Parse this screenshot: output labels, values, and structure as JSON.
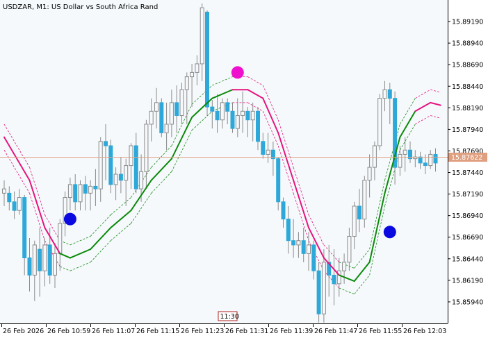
{
  "chart_data": {
    "type": "candlestick",
    "symbol": "USDZAR",
    "timeframe": "M1",
    "description": "US Dollar vs South Africa Rand",
    "title": "USDZAR, M1:  US Dollar vs South Africa Rand",
    "ylim": [
      15.8569,
      15.8944
    ],
    "y_ticks": [
      "15.89190",
      "15.88940",
      "15.88690",
      "15.88440",
      "15.88190",
      "15.87940",
      "15.87690",
      "15.87440",
      "15.87190",
      "15.86940",
      "15.86690",
      "15.86440",
      "15.86190",
      "15.85940"
    ],
    "x_ticks": [
      "26 Feb 2026",
      "26 Feb 10:59",
      "26 Feb 11:07",
      "26 Feb 11:15",
      "26 Feb 11:23",
      "26 Feb 11:31",
      "26 Feb 11:39",
      "26 Feb 11:47",
      "26 Feb 11:55",
      "26 Feb 12:03"
    ],
    "current_price": 15.87622,
    "current_price_label": "15.87622",
    "crosshair_time_label": "11:30",
    "colors": {
      "background": "#f5f9fb",
      "up_candle_fill": "#f5f9fb",
      "up_candle_border": "#8a8a8a",
      "down_candle_fill": "#2ea8d8",
      "down_candle_border": "#2ea8d8",
      "wick": "#8a8a8a",
      "bull_line": "#0b8a0b",
      "bear_line": "#e6157f",
      "band_bull": "#1a8a1a",
      "band_bear": "#e6157f",
      "price_line": "#e0a080",
      "price_label_bg": "#e0a080",
      "signal_buy": "#0a0ae0",
      "signal_sell": "#ee10cc"
    },
    "candles": [
      {
        "o": 15.872,
        "h": 15.8735,
        "l": 15.8705,
        "c": 15.8725
      },
      {
        "o": 15.872,
        "h": 15.8728,
        "l": 15.87,
        "c": 15.871
      },
      {
        "o": 15.871,
        "h": 15.8722,
        "l": 15.869,
        "c": 15.87
      },
      {
        "o": 15.87,
        "h": 15.8725,
        "l": 15.8695,
        "c": 15.8715
      },
      {
        "o": 15.8715,
        "h": 15.8718,
        "l": 15.8625,
        "c": 15.8645
      },
      {
        "o": 15.8645,
        "h": 15.8668,
        "l": 15.8606,
        "c": 15.8625
      },
      {
        "o": 15.8625,
        "h": 15.8665,
        "l": 15.8595,
        "c": 15.866
      },
      {
        "o": 15.8655,
        "h": 15.868,
        "l": 15.86,
        "c": 15.863
      },
      {
        "o": 15.863,
        "h": 15.8668,
        "l": 15.8612,
        "c": 15.866
      },
      {
        "o": 15.866,
        "h": 15.868,
        "l": 15.8615,
        "c": 15.8625
      },
      {
        "o": 15.8625,
        "h": 15.8662,
        "l": 15.861,
        "c": 15.865
      },
      {
        "o": 15.865,
        "h": 15.869,
        "l": 15.863,
        "c": 15.8685
      },
      {
        "o": 15.8685,
        "h": 15.8722,
        "l": 15.867,
        "c": 15.8715
      },
      {
        "o": 15.8715,
        "h": 15.8738,
        "l": 15.87,
        "c": 15.873
      },
      {
        "o": 15.873,
        "h": 15.8742,
        "l": 15.87,
        "c": 15.871
      },
      {
        "o": 15.871,
        "h": 15.8735,
        "l": 15.87,
        "c": 15.873
      },
      {
        "o": 15.873,
        "h": 15.874,
        "l": 15.87,
        "c": 15.872
      },
      {
        "o": 15.872,
        "h": 15.8735,
        "l": 15.87,
        "c": 15.8728
      },
      {
        "o": 15.8728,
        "h": 15.8748,
        "l": 15.8705,
        "c": 15.8725
      },
      {
        "o": 15.8725,
        "h": 15.8785,
        "l": 15.871,
        "c": 15.878
      },
      {
        "o": 15.878,
        "h": 15.88,
        "l": 15.8735,
        "c": 15.8775
      },
      {
        "o": 15.8775,
        "h": 15.8782,
        "l": 15.872,
        "c": 15.873
      },
      {
        "o": 15.873,
        "h": 15.875,
        "l": 15.8712,
        "c": 15.8742
      },
      {
        "o": 15.8742,
        "h": 15.8762,
        "l": 15.872,
        "c": 15.8735
      },
      {
        "o": 15.8735,
        "h": 15.876,
        "l": 15.8705,
        "c": 15.8752
      },
      {
        "o": 15.8752,
        "h": 15.8778,
        "l": 15.8725,
        "c": 15.8775
      },
      {
        "o": 15.8775,
        "h": 15.879,
        "l": 15.872,
        "c": 15.8725
      },
      {
        "o": 15.8725,
        "h": 15.8765,
        "l": 15.871,
        "c": 15.8745
      },
      {
        "o": 15.8745,
        "h": 15.8805,
        "l": 15.8725,
        "c": 15.88
      },
      {
        "o": 15.88,
        "h": 15.883,
        "l": 15.878,
        "c": 15.8815
      },
      {
        "o": 15.8815,
        "h": 15.8842,
        "l": 15.8795,
        "c": 15.8825
      },
      {
        "o": 15.8825,
        "h": 15.883,
        "l": 15.8785,
        "c": 15.879
      },
      {
        "o": 15.879,
        "h": 15.8825,
        "l": 15.877,
        "c": 15.88
      },
      {
        "o": 15.88,
        "h": 15.884,
        "l": 15.8785,
        "c": 15.8825
      },
      {
        "o": 15.8825,
        "h": 15.8845,
        "l": 15.879,
        "c": 15.881
      },
      {
        "o": 15.881,
        "h": 15.8848,
        "l": 15.88,
        "c": 15.884
      },
      {
        "o": 15.884,
        "h": 15.886,
        "l": 15.88,
        "c": 15.8855
      },
      {
        "o": 15.8855,
        "h": 15.887,
        "l": 15.882,
        "c": 15.886
      },
      {
        "o": 15.886,
        "h": 15.888,
        "l": 15.8845,
        "c": 15.887
      },
      {
        "o": 15.887,
        "h": 15.894,
        "l": 15.885,
        "c": 15.8935
      },
      {
        "o": 15.893,
        "h": 15.8932,
        "l": 15.881,
        "c": 15.882
      },
      {
        "o": 15.882,
        "h": 15.8828,
        "l": 15.8795,
        "c": 15.8815
      },
      {
        "o": 15.8815,
        "h": 15.8835,
        "l": 15.879,
        "c": 15.8805
      },
      {
        "o": 15.8805,
        "h": 15.883,
        "l": 15.8795,
        "c": 15.8825
      },
      {
        "o": 15.8825,
        "h": 15.883,
        "l": 15.88,
        "c": 15.8815
      },
      {
        "o": 15.8815,
        "h": 15.8825,
        "l": 15.879,
        "c": 15.8795
      },
      {
        "o": 15.8795,
        "h": 15.883,
        "l": 15.8785,
        "c": 15.881
      },
      {
        "o": 15.881,
        "h": 15.8838,
        "l": 15.879,
        "c": 15.8815
      },
      {
        "o": 15.8815,
        "h": 15.882,
        "l": 15.8785,
        "c": 15.8805
      },
      {
        "o": 15.8805,
        "h": 15.8825,
        "l": 15.878,
        "c": 15.8815
      },
      {
        "o": 15.8815,
        "h": 15.882,
        "l": 15.877,
        "c": 15.878
      },
      {
        "o": 15.878,
        "h": 15.879,
        "l": 15.876,
        "c": 15.8765
      },
      {
        "o": 15.8765,
        "h": 15.879,
        "l": 15.8755,
        "c": 15.877
      },
      {
        "o": 15.877,
        "h": 15.878,
        "l": 15.874,
        "c": 15.876
      },
      {
        "o": 15.876,
        "h": 15.8762,
        "l": 15.87,
        "c": 15.871
      },
      {
        "o": 15.871,
        "h": 15.8715,
        "l": 15.868,
        "c": 15.869
      },
      {
        "o": 15.869,
        "h": 15.8705,
        "l": 15.865,
        "c": 15.8665
      },
      {
        "o": 15.8665,
        "h": 15.869,
        "l": 15.8645,
        "c": 15.866
      },
      {
        "o": 15.866,
        "h": 15.8675,
        "l": 15.8645,
        "c": 15.8665
      },
      {
        "o": 15.8665,
        "h": 15.868,
        "l": 15.864,
        "c": 15.865
      },
      {
        "o": 15.865,
        "h": 15.8675,
        "l": 15.863,
        "c": 15.866
      },
      {
        "o": 15.866,
        "h": 15.8665,
        "l": 15.862,
        "c": 15.863
      },
      {
        "o": 15.863,
        "h": 15.864,
        "l": 15.857,
        "c": 15.858
      },
      {
        "o": 15.858,
        "h": 15.8655,
        "l": 15.857,
        "c": 15.864
      },
      {
        "o": 15.864,
        "h": 15.866,
        "l": 15.86,
        "c": 15.8625
      },
      {
        "o": 15.8625,
        "h": 15.8655,
        "l": 15.859,
        "c": 15.8615
      },
      {
        "o": 15.8615,
        "h": 15.8645,
        "l": 15.86,
        "c": 15.863
      },
      {
        "o": 15.863,
        "h": 15.865,
        "l": 15.8615,
        "c": 15.864
      },
      {
        "o": 15.864,
        "h": 15.868,
        "l": 15.863,
        "c": 15.867
      },
      {
        "o": 15.867,
        "h": 15.871,
        "l": 15.8655,
        "c": 15.8705
      },
      {
        "o": 15.8705,
        "h": 15.8725,
        "l": 15.8675,
        "c": 15.869
      },
      {
        "o": 15.869,
        "h": 15.874,
        "l": 15.868,
        "c": 15.8735
      },
      {
        "o": 15.8735,
        "h": 15.8765,
        "l": 15.8715,
        "c": 15.875
      },
      {
        "o": 15.875,
        "h": 15.878,
        "l": 15.8735,
        "c": 15.8775
      },
      {
        "o": 15.8775,
        "h": 15.8835,
        "l": 15.877,
        "c": 15.883
      },
      {
        "o": 15.883,
        "h": 15.885,
        "l": 15.8815,
        "c": 15.884
      },
      {
        "o": 15.884,
        "h": 15.8848,
        "l": 15.88,
        "c": 15.883
      },
      {
        "o": 15.883,
        "h": 15.8838,
        "l": 15.873,
        "c": 15.875
      },
      {
        "o": 15.875,
        "h": 15.8775,
        "l": 15.874,
        "c": 15.8765
      },
      {
        "o": 15.8765,
        "h": 15.8785,
        "l": 15.8745,
        "c": 15.877
      },
      {
        "o": 15.877,
        "h": 15.878,
        "l": 15.8755,
        "c": 15.876
      },
      {
        "o": 15.876,
        "h": 15.877,
        "l": 15.875,
        "c": 15.8762
      },
      {
        "o": 15.8762,
        "h": 15.8768,
        "l": 15.8748,
        "c": 15.8755
      },
      {
        "o": 15.8755,
        "h": 15.8765,
        "l": 15.8742,
        "c": 15.8752
      },
      {
        "o": 15.8752,
        "h": 15.877,
        "l": 15.8748,
        "c": 15.8765
      },
      {
        "o": 15.8765,
        "h": 15.8772,
        "l": 15.8745,
        "c": 15.8755
      }
    ],
    "moving_average": [
      {
        "t": 0,
        "v": 15.8785,
        "trend": "down"
      },
      {
        "t": 5,
        "v": 15.8735,
        "trend": "down"
      },
      {
        "t": 8,
        "v": 15.868,
        "trend": "down"
      },
      {
        "t": 11,
        "v": 15.865,
        "trend": "down"
      },
      {
        "t": 13,
        "v": 15.8645,
        "trend": "up"
      },
      {
        "t": 17,
        "v": 15.8655,
        "trend": "up"
      },
      {
        "t": 21,
        "v": 15.868,
        "trend": "up"
      },
      {
        "t": 25,
        "v": 15.87,
        "trend": "up"
      },
      {
        "t": 29,
        "v": 15.8735,
        "trend": "up"
      },
      {
        "t": 33,
        "v": 15.876,
        "trend": "up"
      },
      {
        "t": 37,
        "v": 15.8808,
        "trend": "up"
      },
      {
        "t": 41,
        "v": 15.883,
        "trend": "up"
      },
      {
        "t": 45,
        "v": 15.884,
        "trend": "up"
      },
      {
        "t": 48,
        "v": 15.884,
        "trend": "down"
      },
      {
        "t": 51,
        "v": 15.883,
        "trend": "down"
      },
      {
        "t": 54,
        "v": 15.879,
        "trend": "down"
      },
      {
        "t": 57,
        "v": 15.8735,
        "trend": "down"
      },
      {
        "t": 60,
        "v": 15.868,
        "trend": "down"
      },
      {
        "t": 63,
        "v": 15.8645,
        "trend": "down"
      },
      {
        "t": 66,
        "v": 15.8625,
        "trend": "down"
      },
      {
        "t": 69,
        "v": 15.8618,
        "trend": "up"
      },
      {
        "t": 72,
        "v": 15.864,
        "trend": "up"
      },
      {
        "t": 75,
        "v": 15.872,
        "trend": "up"
      },
      {
        "t": 78,
        "v": 15.8785,
        "trend": "up"
      },
      {
        "t": 81,
        "v": 15.8815,
        "trend": "up"
      },
      {
        "t": 84,
        "v": 15.8825,
        "trend": "down"
      },
      {
        "t": 86,
        "v": 15.8822,
        "trend": "down"
      }
    ],
    "band_offset": 0.0015,
    "signals": [
      {
        "type": "buy",
        "t": 13,
        "price": 15.869
      },
      {
        "type": "sell",
        "t": 46,
        "price": 15.886
      },
      {
        "type": "buy",
        "t": 76,
        "price": 15.8675
      }
    ]
  }
}
